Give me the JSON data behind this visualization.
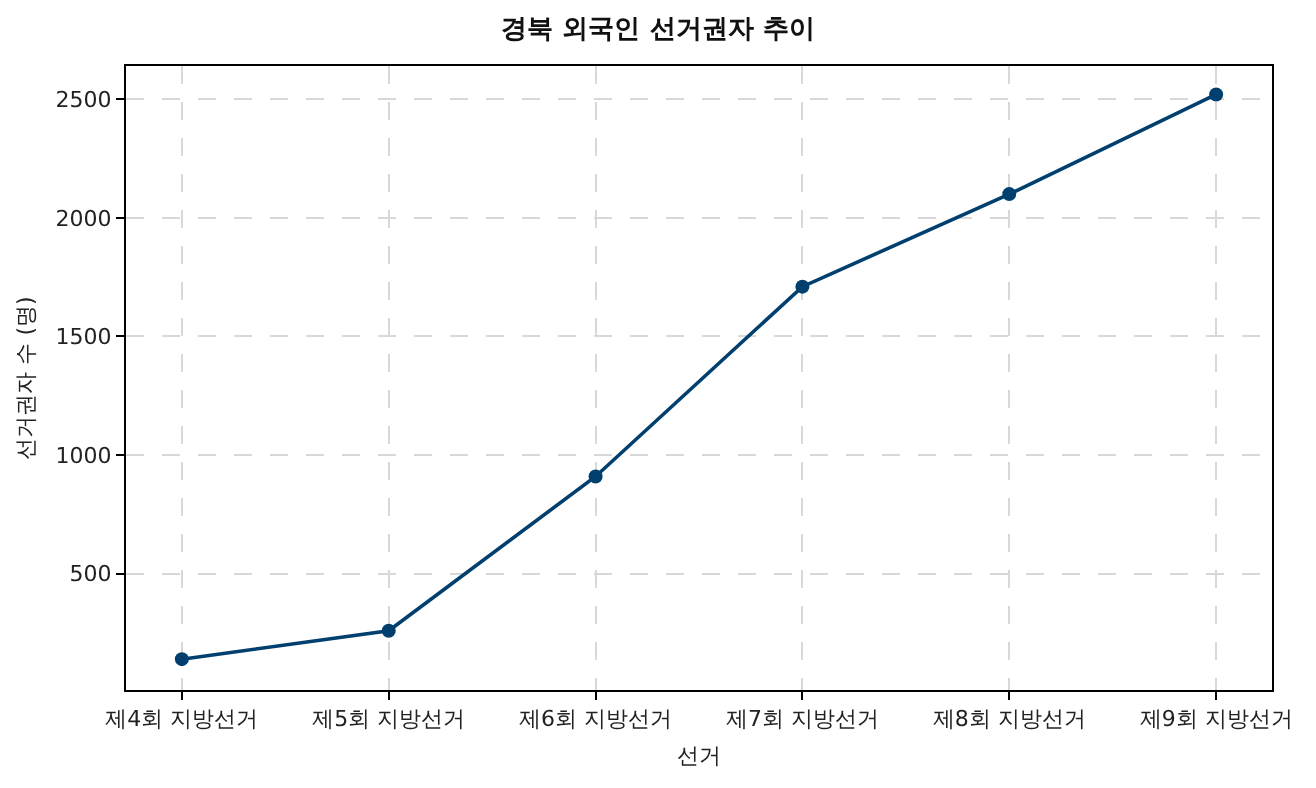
{
  "chart_data": {
    "type": "line",
    "title": "경북 외국인 선거권자 추이",
    "xlabel": "선거",
    "ylabel": "선거권자 수 (명)",
    "categories": [
      "제4회 지방선거",
      "제5회 지방선거",
      "제6회 지방선거",
      "제7회 지방선거",
      "제8회 지방선거",
      "제9회 지방선거"
    ],
    "series": [
      {
        "color": "#003f6e",
        "values": [
          140,
          260,
          910,
          1710,
          2100,
          2520
        ]
      }
    ],
    "ylim": [
      10,
      2640
    ],
    "yticks": [
      500,
      1000,
      1500,
      2000,
      2500
    ],
    "grid": true,
    "marker": "circle",
    "line_style": "solid"
  }
}
